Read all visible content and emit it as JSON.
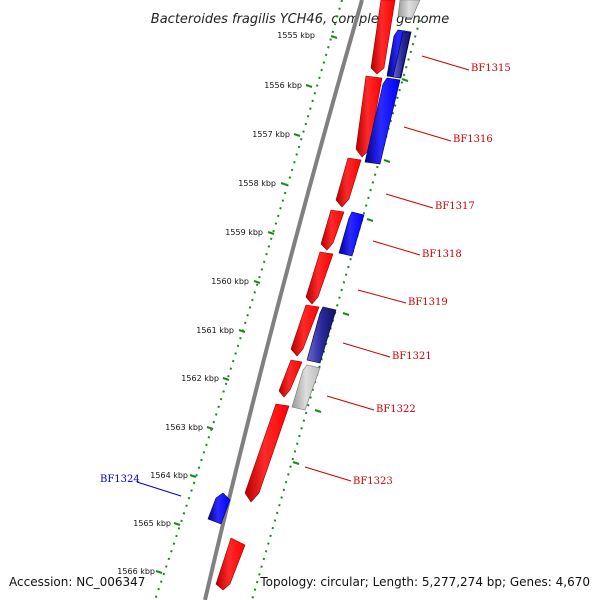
{
  "map": {
    "title": "Bacteroides fragilis YCH46, complete genome",
    "ticks": [
      "1555 kbp",
      "1556 kbp",
      "1557 kbp",
      "1558 kbp",
      "1559 kbp",
      "1560 kbp",
      "1561 kbp",
      "1562 kbp",
      "1563 kbp",
      "1564 kbp",
      "1565 kbp",
      "1566 kbp"
    ],
    "gene_labels": [
      "BF1315",
      "BF1316",
      "BF1317",
      "BF1318",
      "BF1319",
      "BF1321",
      "BF1322",
      "BF1323",
      "BF1324"
    ],
    "accession": "Accession: NC_006347",
    "summary": "Topology: circular; Length: 5,277,274 bp; Genes: 4,670"
  },
  "colors": {
    "forward_gene": "#ff0000",
    "reverse_gene": "#0000ff",
    "reverse_gene_dark": "#1a1a80",
    "other_gene": "#bbbbbb",
    "forward_label": "#cc0000",
    "reverse_label": "#0000cc",
    "tick_ring": "#1a8a1a",
    "backbone": "#888888"
  }
}
